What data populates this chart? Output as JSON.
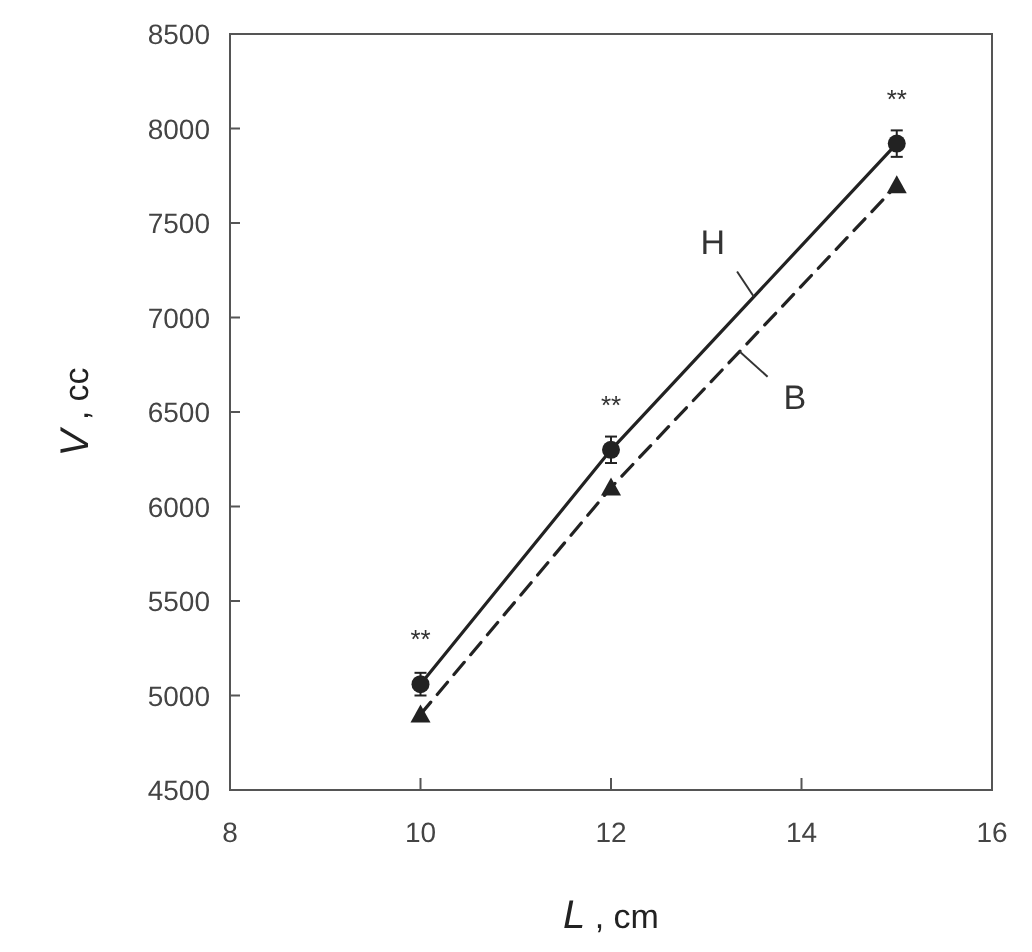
{
  "chart_data": {
    "type": "line",
    "xlabel": "L , cm",
    "ylabel": "V , cc",
    "x": [
      10,
      12,
      15
    ],
    "series": [
      {
        "name": "H",
        "color": "#222222",
        "values": [
          5060,
          6300,
          7920
        ],
        "errors": [
          60,
          70,
          70
        ],
        "marker": "circle",
        "line_style": "solid"
      },
      {
        "name": "B",
        "color": "#222222",
        "values": [
          4900,
          6100,
          7700
        ],
        "marker": "triangle",
        "line_style": "dashed"
      }
    ],
    "annotations": [
      {
        "text": "**",
        "x": 10,
        "y": 5060
      },
      {
        "text": "**",
        "x": 12,
        "y": 6300
      },
      {
        "text": "**",
        "x": 15,
        "y": 7920
      }
    ],
    "xlim": [
      8,
      16
    ],
    "xticks": [
      8,
      10,
      12,
      14,
      16
    ],
    "ylim": [
      4500,
      8500
    ],
    "yticks": [
      4500,
      5000,
      5500,
      6000,
      6500,
      7000,
      7500,
      8000,
      8500
    ],
    "grid": false
  }
}
